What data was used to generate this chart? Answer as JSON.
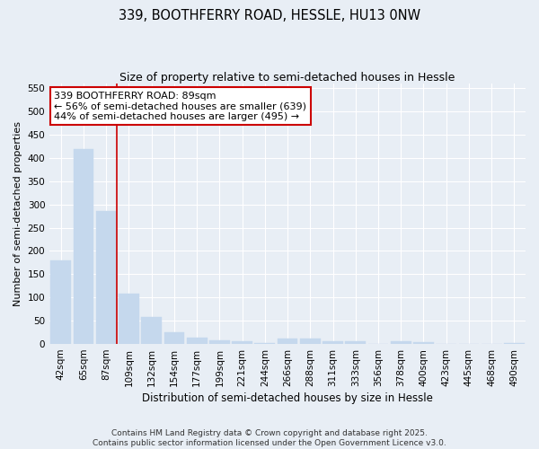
{
  "title": "339, BOOTHFERRY ROAD, HESSLE, HU13 0NW",
  "subtitle": "Size of property relative to semi-detached houses in Hessle",
  "xlabel": "Distribution of semi-detached houses by size in Hessle",
  "ylabel": "Number of semi-detached properties",
  "categories": [
    "42sqm",
    "65sqm",
    "87sqm",
    "109sqm",
    "132sqm",
    "154sqm",
    "177sqm",
    "199sqm",
    "221sqm",
    "244sqm",
    "266sqm",
    "288sqm",
    "311sqm",
    "333sqm",
    "356sqm",
    "378sqm",
    "400sqm",
    "423sqm",
    "445sqm",
    "468sqm",
    "490sqm"
  ],
  "values": [
    180,
    420,
    285,
    108,
    58,
    25,
    14,
    8,
    6,
    3,
    12,
    12,
    6,
    5,
    0,
    5,
    4,
    0,
    0,
    0,
    3
  ],
  "bar_color": "#c5d8ed",
  "bar_edge_color": "#c5d8ed",
  "vline_x_idx": 2,
  "vline_color": "#cc0000",
  "vline_label": "339 BOOTHFERRY ROAD: 89sqm",
  "annotation_smaller": "← 56% of semi-detached houses are smaller (639)",
  "annotation_larger": "44% of semi-detached houses are larger (495) →",
  "annotation_box_color": "#ffffff",
  "annotation_box_edge": "#cc0000",
  "ylim": [
    0,
    560
  ],
  "yticks": [
    0,
    50,
    100,
    150,
    200,
    250,
    300,
    350,
    400,
    450,
    500,
    550
  ],
  "background_color": "#e8eef5",
  "grid_color": "#ffffff",
  "footer": "Contains HM Land Registry data © Crown copyright and database right 2025.\nContains public sector information licensed under the Open Government Licence v3.0.",
  "title_fontsize": 10.5,
  "subtitle_fontsize": 9,
  "xlabel_fontsize": 8.5,
  "ylabel_fontsize": 8,
  "tick_fontsize": 7.5,
  "annotation_fontsize": 8,
  "footer_fontsize": 6.5
}
